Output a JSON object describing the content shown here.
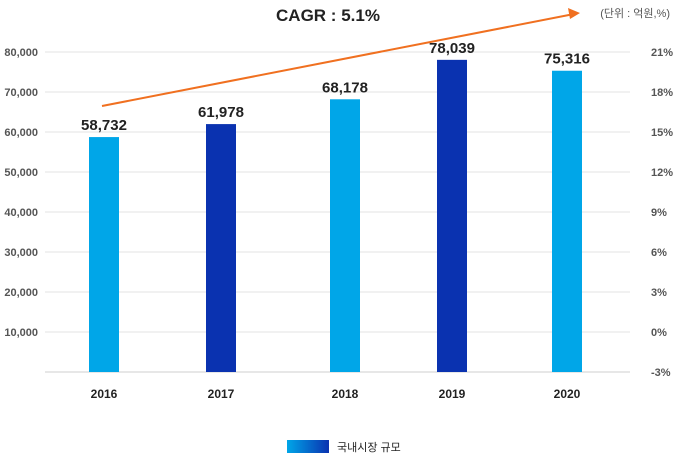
{
  "chart_data": {
    "type": "bar",
    "title": "CAGR : 5.1%",
    "unit_note": "(단위 : 억원,%)",
    "categories": [
      "2016",
      "2017",
      "2018",
      "2019",
      "2020"
    ],
    "series": [
      {
        "name": "국내시장 규모",
        "values": [
          58732,
          61978,
          68178,
          78039,
          75316
        ]
      }
    ],
    "data_labels": [
      "58,732",
      "61,978",
      "68,178",
      "78,039",
      "75,316"
    ],
    "y_left": {
      "ticks": [
        "10,000",
        "20,000",
        "30,000",
        "40,000",
        "50,000",
        "60,000",
        "70,000",
        "80,000"
      ],
      "ylim": [
        0,
        85000
      ]
    },
    "y_right": {
      "ticks": [
        "-3%",
        "0%",
        "3%",
        "6%",
        "9%",
        "12%",
        "15%",
        "18%",
        "21%"
      ],
      "ylim": [
        -3,
        21
      ]
    },
    "grid": true,
    "legend_position": "bottom-center",
    "colors": {
      "light": "#00a6e8",
      "dark": "#0a32b0",
      "arrow": "#f07020",
      "grid": "#e3e3e3"
    }
  }
}
